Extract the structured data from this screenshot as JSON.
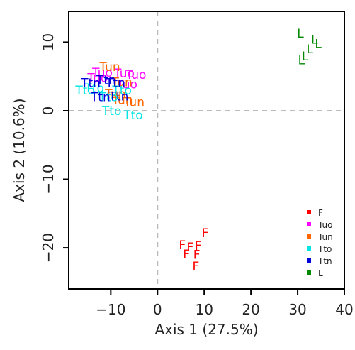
{
  "chart_data": {
    "type": "scatter",
    "title": "",
    "xlabel": "Axis 1 (27.5%)",
    "ylabel": "Axis 2 (10.6%)",
    "xlim": [
      -19,
      40
    ],
    "ylim": [
      -26,
      14.5
    ],
    "x_ticks": [
      -10,
      0,
      10,
      20,
      30,
      40
    ],
    "y_ticks": [
      -20,
      -10,
      0,
      10
    ],
    "reference_lines": {
      "x": 0,
      "y": 0,
      "style": "dashed",
      "color": "#bbbbbb"
    },
    "grid": false,
    "legend_position": "bottom-right",
    "marker": "text-label",
    "series": [
      {
        "name": "F",
        "color": "#ff0000",
        "points": [
          [
            10.2,
            -17.8
          ],
          [
            5.3,
            -19.6
          ],
          [
            7.0,
            -19.9
          ],
          [
            8.7,
            -19.7
          ],
          [
            6.2,
            -20.9
          ],
          [
            8.4,
            -21.0
          ],
          [
            8.2,
            -22.7
          ]
        ]
      },
      {
        "name": "Tuo",
        "color": "#ff00ff",
        "points": [
          [
            -4.6,
            5.3
          ],
          [
            -7.1,
            5.5
          ],
          [
            -11.8,
            5.6
          ],
          [
            -12.8,
            4.8
          ],
          [
            -6.5,
            3.9
          ]
        ]
      },
      {
        "name": "Tun",
        "color": "#ff6600",
        "points": [
          [
            -10.2,
            6.4
          ],
          [
            -7.6,
            4.2
          ],
          [
            -5.0,
            1.3
          ],
          [
            -7.5,
            1.6
          ],
          [
            -9.0,
            2.5
          ]
        ]
      },
      {
        "name": "Tto",
        "color": "#00e5e5",
        "points": [
          [
            -15.5,
            3.0
          ],
          [
            -13.5,
            3.3
          ],
          [
            -7.6,
            3.0
          ],
          [
            -9.8,
            0.0
          ],
          [
            -5.2,
            -0.6
          ],
          [
            -10.5,
            2.0
          ]
        ]
      },
      {
        "name": "Ttn",
        "color": "#0000dd",
        "points": [
          [
            -14.3,
            4.1
          ],
          [
            -11.0,
            4.5
          ],
          [
            -12.2,
            2.0
          ],
          [
            -8.3,
            2.1
          ],
          [
            -9.0,
            4.1
          ]
        ]
      },
      {
        "name": "L",
        "color": "#008800",
        "points": [
          [
            30.6,
            11.3
          ],
          [
            33.6,
            10.4
          ],
          [
            34.4,
            9.8
          ],
          [
            32.6,
            9.0
          ],
          [
            31.6,
            8.0
          ],
          [
            30.8,
            7.4
          ]
        ]
      }
    ]
  }
}
